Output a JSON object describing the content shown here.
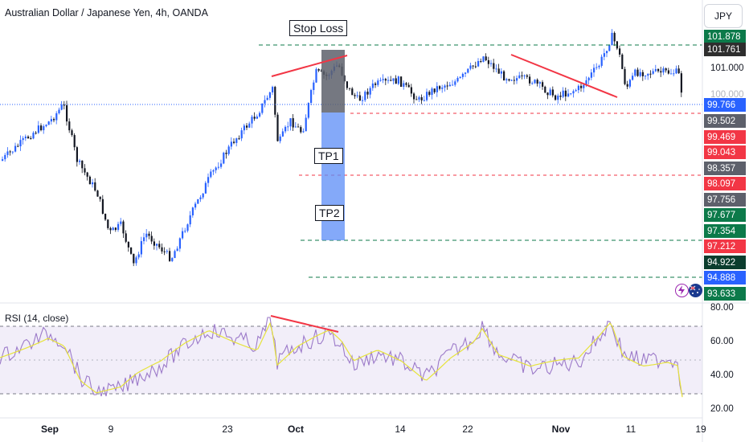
{
  "header": {
    "title": "Australian Dollar / Japanese Yen, 4h, OANDA",
    "currency_button": "JPY"
  },
  "annotations": {
    "stop_loss": "Stop Loss",
    "tp1": "TP1",
    "tp2": "TP2"
  },
  "price_axis": {
    "plain_labels": [
      "101.000",
      "100.000"
    ],
    "tags": [
      {
        "text": "101.878",
        "bg": "#0c7a4a"
      },
      {
        "text": "101.761",
        "bg": "#2e2e2e"
      },
      {
        "text": "99.766",
        "bg": "#2962ff"
      },
      {
        "text": "99.502",
        "bg": "#5d606b"
      },
      {
        "text": "99.469",
        "bg": "#f23645"
      },
      {
        "text": "99.043",
        "bg": "#f23645"
      },
      {
        "text": "98.357",
        "bg": "#5d606b"
      },
      {
        "text": "98.097",
        "bg": "#f23645"
      },
      {
        "text": "97.756",
        "bg": "#5d606b"
      },
      {
        "text": "97.677",
        "bg": "#0c7a4a"
      },
      {
        "text": "97.354",
        "bg": "#0c7a4a"
      },
      {
        "text": "97.212",
        "bg": "#f23645"
      },
      {
        "text": "94.922",
        "bg": "#0b3d2e"
      },
      {
        "text": "94.888",
        "bg": "#2962ff"
      },
      {
        "text": "93.633",
        "bg": "#0c7a4a"
      }
    ]
  },
  "rsi": {
    "title": "RSI (14, close)",
    "axis_labels": [
      "80.00",
      "60.00",
      "40.00",
      "20.00"
    ]
  },
  "time_axis": {
    "labels": [
      "Sep",
      "9",
      "23",
      "Oct",
      "14",
      "22",
      "Nov",
      "11",
      "19"
    ]
  },
  "colors": {
    "up": "#2962ff",
    "down": "#131722",
    "red_line": "#f23645",
    "green_dash": "#0c7a4a",
    "rsi_line": "#9c7ac9",
    "rsi_ma": "#e6e33b",
    "rsi_band": "#ede7f6"
  },
  "icons": [
    "lightning-icon",
    "australia-flag-icon"
  ]
}
